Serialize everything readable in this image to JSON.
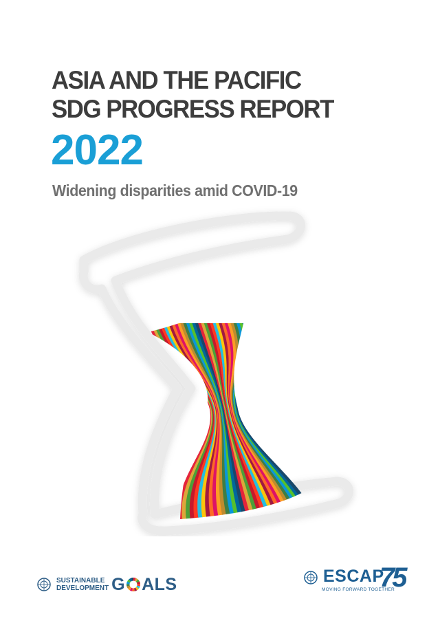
{
  "cover": {
    "title_line1": "ASIA AND THE PACIFIC",
    "title_line2": "SDG PROGRESS REPORT",
    "year": "2022",
    "subtitle": "Widening disparities amid COVID-19"
  },
  "logos": {
    "sdg": {
      "line1": "SUSTAINABLE",
      "line2": "DEVELOPMENT",
      "goals_g": "G",
      "goals_rest": "ALS"
    },
    "escap": {
      "name": "ESCAP",
      "anniversary": "75",
      "tagline": "MOVING FORWARD TOGETHER"
    }
  },
  "colors": {
    "title": "#3d3d3d",
    "year": "#1a9fd6",
    "subtitle": "#707070",
    "logo_blue": "#2d5d86",
    "sdg_palette": [
      "#e5243b",
      "#dda63a",
      "#4c9f38",
      "#c5192d",
      "#ff3a21",
      "#26bde2",
      "#fcc30b",
      "#a21942",
      "#fd6925",
      "#dd1367",
      "#fd9d24",
      "#bf8b2e",
      "#3f7e44",
      "#0a97d9",
      "#56c02b",
      "#00689d",
      "#19486a"
    ]
  },
  "icons": [
    "hourglass-frame-icon",
    "un-emblem-icon",
    "sdg-wheel-icon",
    "escap-emblem-icon"
  ]
}
